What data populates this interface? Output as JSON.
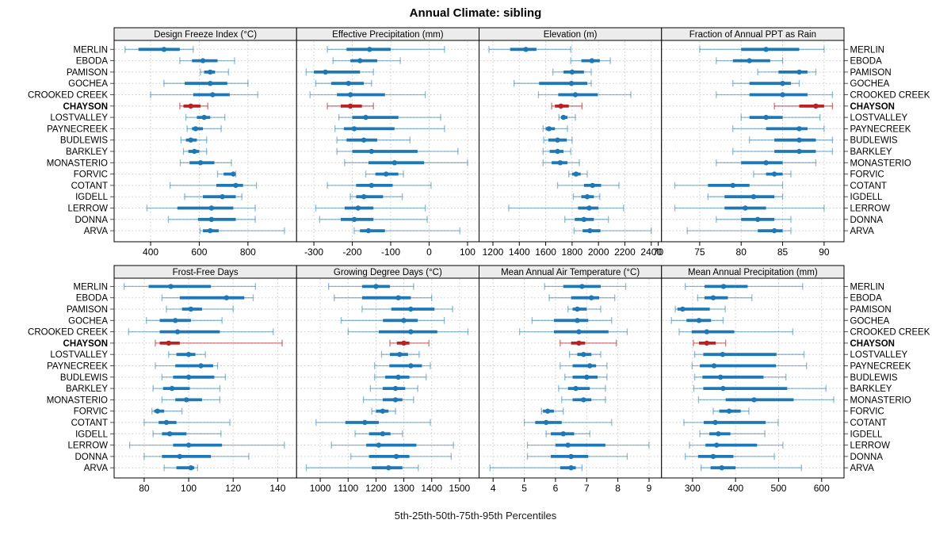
{
  "title": "Annual Climate: sibling",
  "footer": "5th-25th-50th-75th-95th Percentiles",
  "highlight_site": "CHAYSON",
  "colors": {
    "series": "#1d78b5",
    "series_light": "rgba(29,120,181,0.5)",
    "highlight": "#bb2025",
    "highlight_light": "rgba(187,32,37,0.6)",
    "grid": "#c9c9c9",
    "strip_bg": "#ececec",
    "border": "#000000",
    "row_tick": "#444444"
  },
  "sites": [
    "MERLIN",
    "EBODA",
    "PAMISON",
    "GOCHEA",
    "CROOKED CREEK",
    "CHAYSON",
    "LOSTVALLEY",
    "PAYNECREEK",
    "BUDLEWIS",
    "BARKLEY",
    "MONASTERIO",
    "FORVIC",
    "COTANT",
    "IGDELL",
    "LERROW",
    "DONNA",
    "ARVA"
  ],
  "chart_data": {
    "type": "trellis-percentile-dotplot",
    "percentile_labels": [
      "5th",
      "25th",
      "50th",
      "75th",
      "95th"
    ],
    "grid": "dotted",
    "legend_position": "none",
    "panels": [
      {
        "title": "Design Freeze Index (°C)",
        "row": 0,
        "col": 0,
        "ticks": [
          400,
          600,
          800
        ],
        "domain": [
          250,
          1000
        ],
        "values": {
          "MERLIN": [
            295,
            350,
            455,
            520,
            575
          ],
          "EBODA": [
            520,
            570,
            615,
            675,
            745
          ],
          "PAMISON": [
            605,
            620,
            645,
            665,
            720
          ],
          "GOCHEA": [
            455,
            540,
            645,
            715,
            800
          ],
          "CROOKED CREEK": [
            400,
            575,
            655,
            725,
            840
          ],
          "CHAYSON": [
            520,
            535,
            565,
            605,
            635
          ],
          "LOSTVALLEY": [
            545,
            590,
            620,
            645,
            705
          ],
          "PAYNECREEK": [
            550,
            570,
            585,
            615,
            690
          ],
          "BUDLEWIS": [
            525,
            545,
            565,
            590,
            630
          ],
          "BARKLEY": [
            535,
            555,
            580,
            600,
            630
          ],
          "MONASTERIO": [
            522,
            560,
            605,
            662,
            732
          ],
          "FORVIC": [
            675,
            700,
            740,
            745,
            750
          ],
          "COTANT": [
            480,
            670,
            750,
            780,
            835
          ],
          "IGDELL": [
            540,
            615,
            695,
            750,
            775
          ],
          "LERROW": [
            385,
            510,
            650,
            740,
            830
          ],
          "DONNA": [
            473,
            595,
            650,
            750,
            830
          ],
          "ARVA": [
            603,
            615,
            645,
            680,
            950
          ]
        }
      },
      {
        "title": "Effective Precipitation (mm)",
        "row": 0,
        "col": 1,
        "ticks": [
          -300,
          -200,
          -100,
          0,
          100
        ],
        "domain": [
          -345,
          130
        ],
        "values": {
          "MERLIN": [
            -265,
            -215,
            -155,
            -100,
            40
          ],
          "EBODA": [
            -250,
            -205,
            -180,
            -135,
            -75
          ],
          "PAMISON": [
            -320,
            -300,
            -270,
            -180,
            -145
          ],
          "GOCHEA": [
            -295,
            -255,
            -210,
            -170,
            -150
          ],
          "CROOKED CREEK": [
            -310,
            -240,
            -205,
            -115,
            -10
          ],
          "CHAYSON": [
            -265,
            -230,
            -205,
            -175,
            -145
          ],
          "LOSTVALLEY": [
            -235,
            -200,
            -165,
            -80,
            30
          ],
          "PAYNECREEK": [
            -245,
            -222,
            -195,
            -90,
            40
          ],
          "BUDLEWIS": [
            -240,
            -215,
            -170,
            -135,
            -50
          ],
          "BARKLEY": [
            -240,
            -200,
            -150,
            -30,
            75
          ],
          "MONASTERIO": [
            -220,
            -158,
            -90,
            -13,
            100
          ],
          "FORVIC": [
            -165,
            -140,
            -112,
            -80,
            -67
          ],
          "COTANT": [
            -265,
            -190,
            -150,
            -95,
            5
          ],
          "IGDELL": [
            -205,
            -190,
            -170,
            -120,
            -70
          ],
          "LERROW": [
            -295,
            -220,
            -185,
            -145,
            -10
          ],
          "DONNA": [
            -285,
            -230,
            -195,
            -145,
            -5
          ],
          "ARVA": [
            -195,
            -180,
            -158,
            -115,
            80
          ]
        }
      },
      {
        "title": "Elevation (m)",
        "row": 0,
        "col": 2,
        "ticks": [
          1200,
          1400,
          1600,
          1800,
          2000,
          2200,
          2400
        ],
        "domain": [
          1095,
          2478
        ],
        "values": {
          "MERLIN": [
            1170,
            1330,
            1450,
            1530,
            1790
          ],
          "EBODA": [
            1790,
            1870,
            1950,
            2010,
            2090
          ],
          "PAMISON": [
            1655,
            1735,
            1800,
            1890,
            1945
          ],
          "GOCHEA": [
            1360,
            1550,
            1795,
            1915,
            1945
          ],
          "CROOKED CREEK": [
            1545,
            1695,
            1825,
            1995,
            2245
          ],
          "CHAYSON": [
            1645,
            1670,
            1715,
            1775,
            1875
          ],
          "LOSTVALLEY": [
            1700,
            1715,
            1735,
            1765,
            1825
          ],
          "PAYNECREEK": [
            1580,
            1600,
            1625,
            1670,
            1765
          ],
          "BUDLEWIS": [
            1585,
            1620,
            1690,
            1760,
            1800
          ],
          "BARKLEY": [
            1580,
            1630,
            1690,
            1735,
            1790
          ],
          "MONASTERIO": [
            1580,
            1645,
            1710,
            1765,
            1855
          ],
          "FORVIC": [
            1775,
            1800,
            1830,
            1865,
            1915
          ],
          "COTANT": [
            1690,
            1890,
            1955,
            2020,
            2155
          ],
          "IGDELL": [
            1810,
            1870,
            1915,
            1965,
            2010
          ],
          "LERROW": [
            1320,
            1845,
            1930,
            2000,
            2190
          ],
          "DONNA": [
            1745,
            1820,
            1890,
            1965,
            2075
          ],
          "ARVA": [
            1815,
            1880,
            1935,
            2015,
            2400
          ]
        }
      },
      {
        "title": "Fraction of Annual PPT as Rain",
        "row": 0,
        "col": 3,
        "ticks": [
          70,
          75,
          80,
          85,
          90
        ],
        "domain": [
          70.4,
          92.4
        ],
        "values": {
          "MERLIN": [
            75,
            80,
            83,
            87,
            90
          ],
          "EBODA": [
            77,
            79,
            81,
            83.5,
            85
          ],
          "PAMISON": [
            82,
            84.5,
            87,
            88,
            89
          ],
          "GOCHEA": [
            79,
            81,
            85,
            86,
            87
          ],
          "CROOKED CREEK": [
            77,
            81,
            85,
            88,
            91
          ],
          "CHAYSON": [
            84,
            87,
            89,
            90,
            91
          ],
          "LOSTVALLEY": [
            80,
            81,
            83,
            85,
            89.5
          ],
          "PAYNECREEK": [
            79,
            83,
            87,
            88,
            90
          ],
          "BUDLEWIS": [
            81,
            84,
            87,
            89,
            91
          ],
          "BARKLEY": [
            79,
            84,
            87,
            89,
            91
          ],
          "MONASTERIO": [
            77,
            80,
            83,
            85,
            89
          ],
          "FORVIC": [
            81.5,
            83,
            84,
            85,
            86
          ],
          "COTANT": [
            72,
            76,
            79,
            81,
            85
          ],
          "IGDELL": [
            76,
            78,
            81.5,
            84,
            85
          ],
          "LERROW": [
            72,
            78,
            80.5,
            83,
            90
          ],
          "DONNA": [
            77,
            80,
            82,
            84,
            86
          ],
          "ARVA": [
            73.5,
            82,
            84,
            85,
            86
          ]
        }
      },
      {
        "title": "Frost-Free Days",
        "row": 1,
        "col": 0,
        "ticks": [
          80,
          100,
          120,
          140
        ],
        "domain": [
          66.5,
          148.5
        ],
        "values": {
          "MERLIN": [
            71,
            82,
            92,
            110,
            130
          ],
          "EBODA": [
            88,
            96,
            117,
            125,
            129
          ],
          "PAMISON": [
            90,
            97,
            101,
            106,
            120
          ],
          "GOCHEA": [
            81,
            87,
            94,
            101,
            115
          ],
          "CROOKED CREEK": [
            73,
            87,
            95,
            114,
            138
          ],
          "CHAYSON": [
            85,
            87,
            91,
            96,
            142
          ],
          "LOSTVALLEY": [
            91,
            94.5,
            100,
            103,
            107.5
          ],
          "PAYNECREEK": [
            85,
            94,
            105.5,
            111,
            113
          ],
          "BUDLEWIS": [
            88,
            93,
            100,
            111.5,
            116.5
          ],
          "BARKLEY": [
            84,
            88.5,
            92.5,
            100.5,
            114
          ],
          "MONASTERIO": [
            88,
            94,
            99,
            106,
            114
          ],
          "FORVIC": [
            83.5,
            84.5,
            86,
            89,
            97
          ],
          "COTANT": [
            80,
            86.5,
            90,
            94.5,
            118.5
          ],
          "IGDELL": [
            84,
            88,
            91.5,
            99,
            114.5
          ],
          "LERROW": [
            73.5,
            93,
            100,
            115,
            143
          ],
          "DONNA": [
            80,
            88,
            96,
            110,
            127
          ],
          "ARVA": [
            89,
            94.5,
            101,
            102.5,
            104
          ]
        }
      },
      {
        "title": "Growing Degree Days (°C)",
        "row": 1,
        "col": 1,
        "ticks": [
          1000,
          1100,
          1200,
          1300,
          1400,
          1500
        ],
        "domain": [
          915,
          1570
        ],
        "values": {
          "MERLIN": [
            1030,
            1150,
            1200,
            1250,
            1335
          ],
          "EBODA": [
            1050,
            1150,
            1280,
            1325,
            1400
          ],
          "PAMISON": [
            1150,
            1255,
            1325,
            1410,
            1475
          ],
          "GOCHEA": [
            1075,
            1225,
            1300,
            1350,
            1445
          ],
          "CROOKED CREEK": [
            1100,
            1210,
            1325,
            1420,
            1530
          ],
          "CHAYSON": [
            1250,
            1275,
            1300,
            1320,
            1390
          ],
          "LOSTVALLEY": [
            1220,
            1250,
            1285,
            1315,
            1355
          ],
          "PAYNECREEK": [
            1195,
            1248,
            1325,
            1365,
            1395
          ],
          "BUDLEWIS": [
            1195,
            1233,
            1280,
            1320,
            1380
          ],
          "BARKLEY": [
            1180,
            1224,
            1270,
            1305,
            1350
          ],
          "MONASTERIO": [
            1155,
            1224,
            1270,
            1295,
            1335
          ],
          "FORVIC": [
            1185,
            1200,
            1224,
            1245,
            1270
          ],
          "COTANT": [
            985,
            1090,
            1160,
            1210,
            1395
          ],
          "IGDELL": [
            1125,
            1175,
            1224,
            1252,
            1295
          ],
          "LERROW": [
            1040,
            1165,
            1210,
            1345,
            1478
          ],
          "DONNA": [
            1110,
            1175,
            1273,
            1320,
            1470
          ],
          "ARVA": [
            950,
            1185,
            1245,
            1295,
            1352
          ]
        }
      },
      {
        "title": "Mean Annual Air Temperature (°C)",
        "row": 1,
        "col": 2,
        "ticks": [
          4,
          5,
          6,
          7,
          8,
          9
        ],
        "domain": [
          3.55,
          9.4
        ],
        "values": {
          "MERLIN": [
            5.65,
            6.25,
            6.85,
            7.45,
            8.25
          ],
          "EBODA": [
            5.8,
            6.5,
            7.15,
            7.4,
            7.9
          ],
          "PAMISON": [
            6.4,
            6.55,
            6.7,
            7.0,
            7.45
          ],
          "GOCHEA": [
            5.25,
            5.95,
            6.7,
            7.05,
            7.8
          ],
          "CROOKED CREEK": [
            4.85,
            5.95,
            6.75,
            7.7,
            8.3
          ],
          "CHAYSON": [
            6.15,
            6.5,
            6.75,
            6.95,
            7.95
          ],
          "LOSTVALLEY": [
            6.45,
            6.7,
            6.9,
            7.15,
            7.45
          ],
          "PAYNECREEK": [
            6.15,
            6.55,
            7.1,
            7.3,
            7.65
          ],
          "BUDLEWIS": [
            6.3,
            6.55,
            7.0,
            7.35,
            7.65
          ],
          "BARKLEY": [
            6.1,
            6.4,
            6.65,
            7.1,
            7.6
          ],
          "MONASTERIO": [
            6.2,
            6.55,
            6.9,
            7.15,
            7.6
          ],
          "FORVIC": [
            5.55,
            5.6,
            5.75,
            5.95,
            6.25
          ],
          "COTANT": [
            5.0,
            5.35,
            5.7,
            6.2,
            7.8
          ],
          "IGDELL": [
            5.7,
            5.85,
            6.25,
            6.6,
            7.1
          ],
          "LERROW": [
            5.1,
            6.0,
            6.4,
            7.6,
            9.0
          ],
          "DONNA": [
            5.1,
            5.85,
            6.5,
            7.05,
            8.3
          ],
          "ARVA": [
            3.9,
            6.15,
            6.5,
            6.65,
            6.85
          ]
        }
      },
      {
        "title": "Mean Annual Precipitation (mm)",
        "row": 1,
        "col": 3,
        "ticks": [
          300,
          400,
          500,
          600
        ],
        "domain": [
          228,
          652
        ],
        "values": {
          "MERLIN": [
            283,
            328,
            372,
            428,
            556
          ],
          "EBODA": [
            312,
            328,
            348,
            382,
            438
          ],
          "PAMISON": [
            260,
            265,
            277,
            340,
            376
          ],
          "GOCHEA": [
            251,
            286,
            315,
            343,
            371
          ],
          "CROOKED CREEK": [
            269,
            298,
            333,
            397,
            533
          ],
          "CHAYSON": [
            302,
            315,
            333,
            354,
            377
          ],
          "LOSTVALLEY": [
            305,
            325,
            370,
            495,
            559
          ],
          "PAYNECREEK": [
            299,
            317,
            350,
            494,
            565
          ],
          "BUDLEWIS": [
            305,
            323,
            365,
            465,
            517
          ],
          "BARKLEY": [
            303,
            325,
            371,
            520,
            610
          ],
          "MONASTERIO": [
            314,
            377,
            443,
            535,
            628
          ],
          "FORVIC": [
            348,
            362,
            385,
            412,
            431
          ],
          "COTANT": [
            280,
            326,
            353,
            470,
            499
          ],
          "IGDELL": [
            317,
            339,
            360,
            388,
            468
          ],
          "LERROW": [
            293,
            330,
            356,
            450,
            510
          ],
          "DONNA": [
            283,
            313,
            348,
            395,
            490
          ],
          "ARVA": [
            320,
            342,
            368,
            400,
            553
          ]
        }
      }
    ]
  }
}
